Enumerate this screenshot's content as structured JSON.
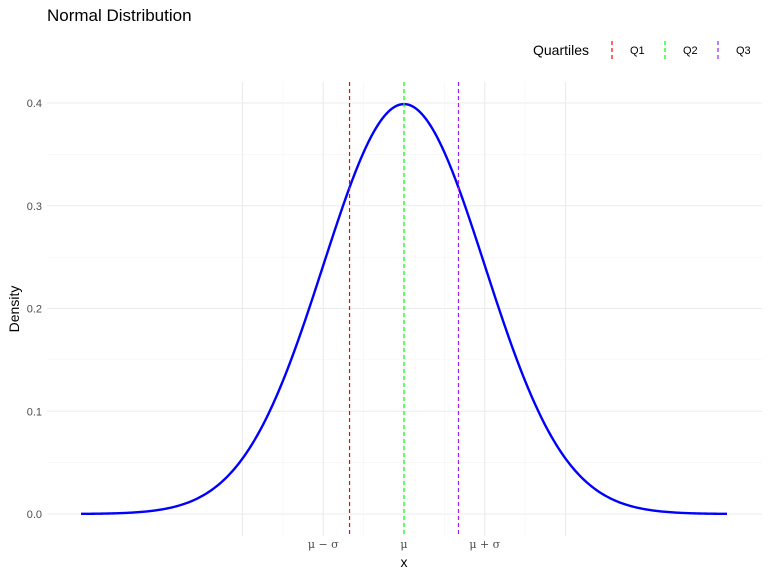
{
  "chart_data": {
    "type": "line",
    "title": "Normal Distribution",
    "xlabel": "x",
    "ylabel": "Density",
    "distribution": {
      "mean": 0,
      "sd": 1
    },
    "xlim": [
      -4,
      4
    ],
    "ylim": [
      0,
      0.4
    ],
    "y_ticks": [
      0.0,
      0.1,
      0.2,
      0.3,
      0.4
    ],
    "y_tick_labels": [
      "0.0",
      "0.1",
      "0.2",
      "0.3",
      "0.4"
    ],
    "x_ticks": [
      -1,
      0,
      1
    ],
    "x_tick_labels": [
      "μ − σ",
      "μ",
      "μ + σ"
    ],
    "x_major_grid": [
      -2,
      -1,
      0,
      1,
      2
    ],
    "x_minor_grid": [
      -1.5,
      -0.5,
      0.5,
      1.5
    ],
    "grid": true,
    "curve_color": "#0000FF",
    "legend": {
      "title": "Quartiles",
      "position": "top-right",
      "entries": [
        {
          "name": "Q1",
          "value": -0.6745,
          "color": "#FF0000"
        },
        {
          "name": "Q2",
          "value": 0,
          "color": "#00FF00"
        },
        {
          "name": "Q3",
          "value": 0.6745,
          "color": "#A020F0"
        }
      ]
    }
  }
}
